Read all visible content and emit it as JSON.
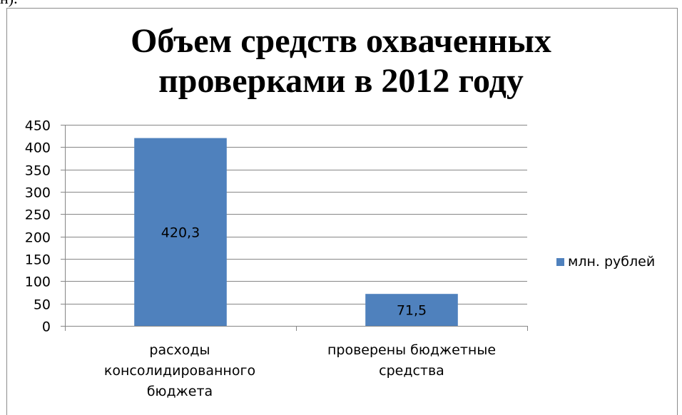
{
  "page": {
    "top_fragment": "н)."
  },
  "chart_data": {
    "type": "bar",
    "title_lines": [
      "Объем средств  охваченных",
      "проверками в 2012 году"
    ],
    "categories": [
      [
        "расходы",
        "консолидированного",
        "бюджета"
      ],
      [
        "проверены бюджетные",
        "средства"
      ]
    ],
    "series": [
      {
        "name": "млн. рублей",
        "values": [
          420.3,
          71.5
        ],
        "data_labels": [
          "420,3",
          "71,5"
        ],
        "color": "#4f81bd"
      }
    ],
    "ylim": [
      0,
      450
    ],
    "y_ticks": [
      0,
      50,
      100,
      150,
      200,
      250,
      300,
      350,
      400,
      450
    ],
    "grid": true,
    "legend_position": "right"
  }
}
